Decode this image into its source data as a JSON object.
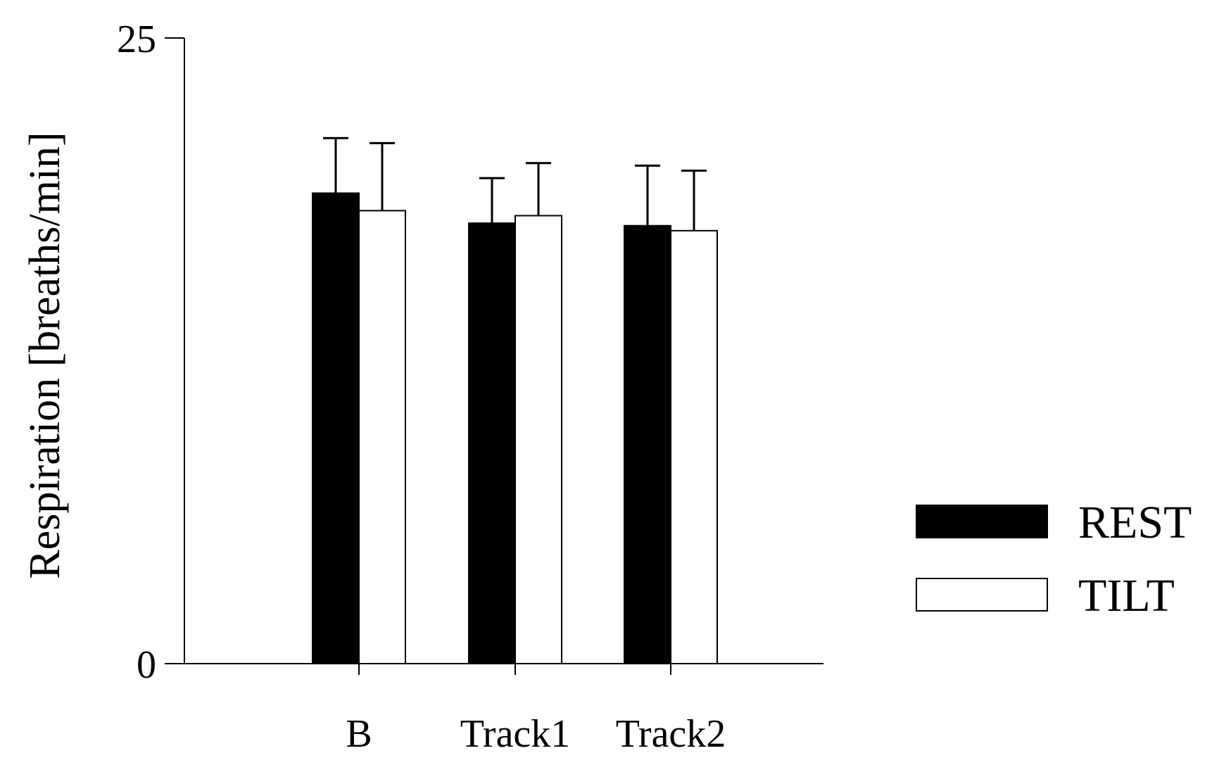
{
  "chart_data": {
    "type": "bar",
    "title": "",
    "xlabel": "",
    "ylabel": "Respiration [breaths/min]",
    "ylim": [
      0,
      25
    ],
    "yticks": [
      0,
      25
    ],
    "categories": [
      "B",
      "Track1",
      "Track2"
    ],
    "series": [
      {
        "name": "REST",
        "values": [
          18.8,
          17.6,
          17.5
        ],
        "errors": [
          2.2,
          1.8,
          2.4
        ],
        "color": "#000000"
      },
      {
        "name": "TILT",
        "values": [
          18.1,
          17.9,
          17.3
        ],
        "errors": [
          2.7,
          2.1,
          2.4
        ],
        "color": "#ffffff"
      }
    ],
    "legend_position": "right",
    "grid": false
  }
}
